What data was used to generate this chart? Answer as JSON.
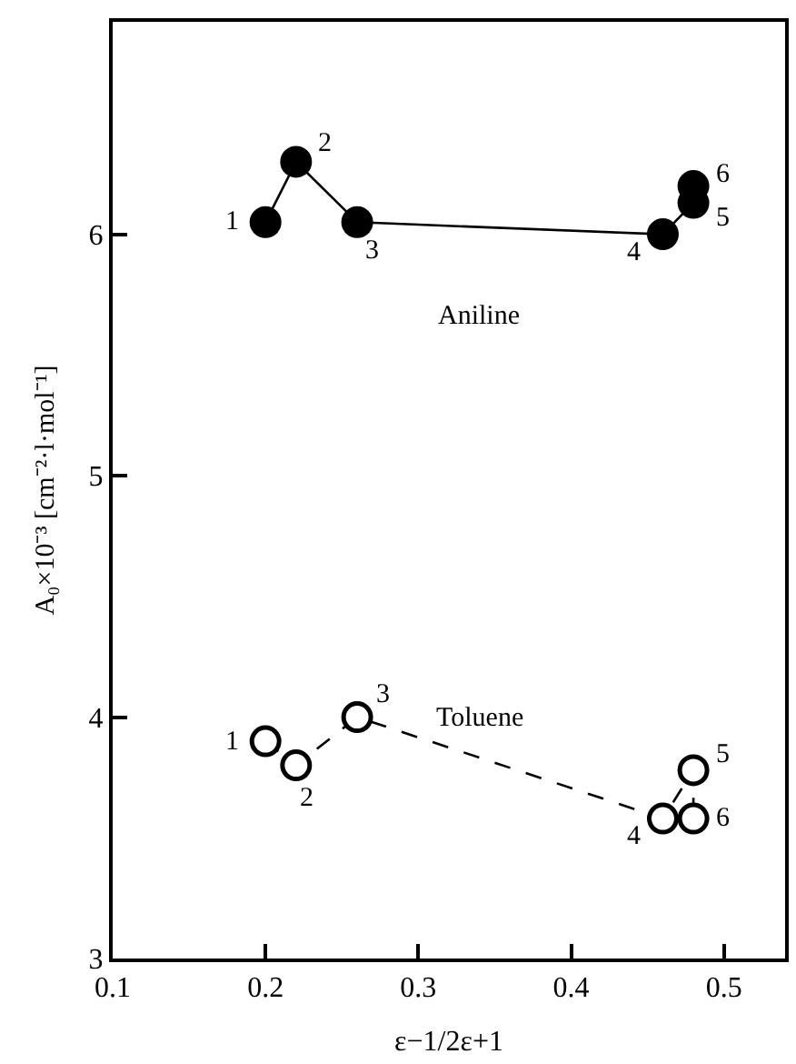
{
  "chart_data": {
    "type": "line",
    "xlabel": "ε−1/2ε+1",
    "ylabel": "A₀×10⁻³ [cm⁻²·l·mol⁻¹]",
    "xlim": [
      0.1,
      0.54
    ],
    "xticks": [
      0.1,
      0.2,
      0.3,
      0.4,
      0.5
    ],
    "ylim": [
      3,
      6.88
    ],
    "yticks": [
      3,
      4,
      5,
      6
    ],
    "legend": false,
    "marker": "circle",
    "series": [
      {
        "name": "Aniline",
        "color": "#000000",
        "line_style": "solid",
        "x": [
          0.2,
          0.22,
          0.26,
          0.46,
          0.48,
          0.48
        ],
        "values": [
          6.05,
          6.3,
          6.05,
          6.0,
          6.13,
          6.2
        ]
      },
      {
        "name": "Toluene",
        "color": "#000000",
        "line_style": "dashed",
        "x": [
          0.2,
          0.22,
          0.26,
          0.46,
          0.48,
          0.48
        ],
        "values": [
          3.9,
          3.8,
          4.0,
          3.58,
          3.78,
          3.58
        ]
      }
    ],
    "annotations": [
      {
        "text": "1",
        "x": 0.2,
        "y": 6.05
      },
      {
        "text": "2",
        "x": 0.22,
        "y": 6.3
      },
      {
        "text": "3",
        "x": 0.26,
        "y": 6.05
      },
      {
        "text": "4",
        "x": 0.46,
        "y": 6.0
      },
      {
        "text": "5",
        "x": 0.48,
        "y": 6.13
      },
      {
        "text": "6",
        "x": 0.48,
        "y": 6.2
      },
      {
        "text": "1",
        "x": 0.2,
        "y": 3.9
      },
      {
        "text": "2",
        "x": 0.22,
        "y": 3.8
      },
      {
        "text": "3",
        "x": 0.26,
        "y": 4.0
      },
      {
        "text": "4",
        "x": 0.46,
        "y": 3.58
      },
      {
        "text": "5",
        "x": 0.48,
        "y": 3.78
      },
      {
        "text": "6",
        "x": 0.48,
        "y": 3.58
      }
    ]
  }
}
